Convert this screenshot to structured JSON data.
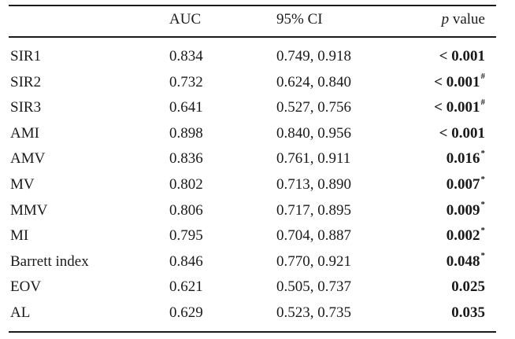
{
  "table": {
    "header": {
      "label": "",
      "auc": "AUC",
      "ci": "95% CI",
      "p_italic": "p",
      "p_rest": " value"
    },
    "rows": [
      {
        "label": "SIR1",
        "auc": "0.834",
        "ci": "0.749, 0.918",
        "p": "< 0.001",
        "mark": ""
      },
      {
        "label": "SIR2",
        "auc": "0.732",
        "ci": "0.624, 0.840",
        "p": "< 0.001",
        "mark": "#"
      },
      {
        "label": "SIR3",
        "auc": "0.641",
        "ci": "0.527, 0.756",
        "p": "< 0.001",
        "mark": "#"
      },
      {
        "label": "AMI",
        "auc": "0.898",
        "ci": "0.840, 0.956",
        "p": "< 0.001",
        "mark": ""
      },
      {
        "label": "AMV",
        "auc": "0.836",
        "ci": "0.761, 0.911",
        "p": "0.016",
        "mark": "*"
      },
      {
        "label": "MV",
        "auc": "0.802",
        "ci": "0.713, 0.890",
        "p": "0.007",
        "mark": "*"
      },
      {
        "label": "MMV",
        "auc": "0.806",
        "ci": "0.717, 0.895",
        "p": "0.009",
        "mark": "*"
      },
      {
        "label": "MI",
        "auc": "0.795",
        "ci": "0.704, 0.887",
        "p": "0.002",
        "mark": "*"
      },
      {
        "label": "Barrett index",
        "auc": "0.846",
        "ci": "0.770, 0.921",
        "p": "0.048",
        "mark": "*"
      },
      {
        "label": "EOV",
        "auc": "0.621",
        "ci": "0.505, 0.737",
        "p": "0.025",
        "mark": ""
      },
      {
        "label": "AL",
        "auc": "0.629",
        "ci": "0.523, 0.735",
        "p": "0.035",
        "mark": ""
      }
    ]
  }
}
